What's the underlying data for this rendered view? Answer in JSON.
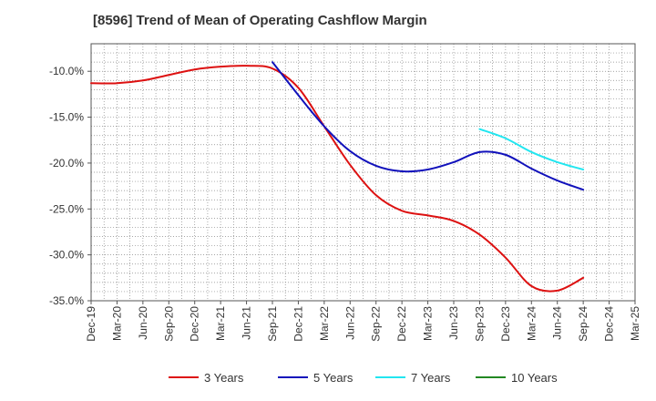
{
  "chart_data": {
    "type": "line",
    "title": "[8596]  Trend of Mean of Operating Cashflow Margin",
    "xlabel": "",
    "ylabel": "",
    "grid": true,
    "legend_position": "bottom",
    "categories": [
      "Dec-19",
      "Mar-20",
      "Jun-20",
      "Sep-20",
      "Dec-20",
      "Mar-21",
      "Jun-21",
      "Sep-21",
      "Dec-21",
      "Mar-22",
      "Jun-22",
      "Sep-22",
      "Dec-22",
      "Mar-23",
      "Jun-23",
      "Sep-23",
      "Dec-23",
      "Mar-24",
      "Jun-24",
      "Sep-24",
      "Dec-24",
      "Mar-25"
    ],
    "y_ticks": [
      {
        "value": -10,
        "label": "-10.0%"
      },
      {
        "value": -15,
        "label": "-15.0%"
      },
      {
        "value": -20,
        "label": "-20.0%"
      },
      {
        "value": -25,
        "label": "-25.0%"
      },
      {
        "value": -30,
        "label": "-30.0%"
      },
      {
        "value": -35,
        "label": "-35.0%"
      }
    ],
    "ylim": [
      -35,
      -7
    ],
    "series": [
      {
        "name": "3 Years",
        "color": "#dd1111",
        "values": [
          -11.3,
          -11.3,
          -11.0,
          -10.4,
          -9.8,
          -9.5,
          -9.4,
          -9.7,
          -11.8,
          -16.0,
          -20.2,
          -23.5,
          -25.2,
          -25.7,
          -26.3,
          -27.8,
          -30.3,
          -33.4,
          -33.9,
          -32.5,
          null,
          null
        ]
      },
      {
        "name": "5 Years",
        "color": "#1111bb",
        "values": [
          null,
          null,
          null,
          null,
          null,
          null,
          null,
          -9.0,
          -12.6,
          -16.0,
          -18.7,
          -20.3,
          -20.9,
          -20.7,
          -19.9,
          -18.8,
          -19.1,
          -20.6,
          -21.9,
          -22.9,
          null,
          null
        ]
      },
      {
        "name": "7 Years",
        "color": "#22e6f0",
        "values": [
          null,
          null,
          null,
          null,
          null,
          null,
          null,
          null,
          null,
          null,
          null,
          null,
          null,
          null,
          null,
          -16.3,
          -17.3,
          -18.8,
          -19.9,
          -20.7,
          null,
          null
        ]
      },
      {
        "name": "10 Years",
        "color": "#228822",
        "values": [
          null,
          null,
          null,
          null,
          null,
          null,
          null,
          null,
          null,
          null,
          null,
          null,
          null,
          null,
          null,
          null,
          null,
          null,
          null,
          null,
          null,
          null
        ]
      }
    ]
  }
}
